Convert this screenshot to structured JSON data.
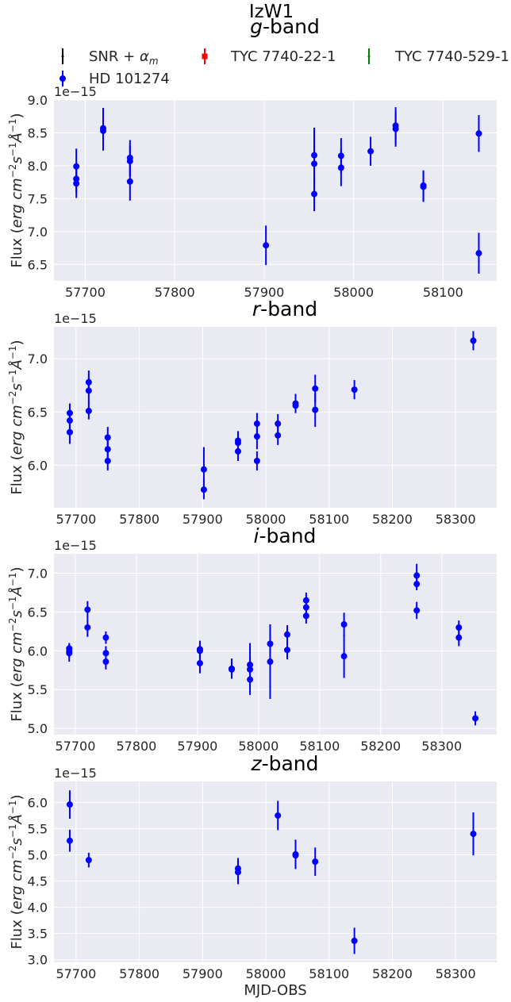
{
  "title": "IzW1",
  "colors": {
    "axes_bg": "#eaeaf2",
    "grid": "#ffffff",
    "series_main": "#0000ff",
    "series_red": "#ff0000",
    "series_green": "#008000",
    "series_black": "#000000"
  },
  "legend": {
    "items": [
      {
        "label": "SNR + ",
        "math": "α",
        "math_sub": "m",
        "color": "#000000",
        "marker": "errorbar"
      },
      {
        "label": "TYC 7740-22-1",
        "color": "#ff0000",
        "marker": "square"
      },
      {
        "label": "TYC 7740-529-1",
        "color": "#008000",
        "marker": "errorbar"
      },
      {
        "label": "HD 101274",
        "color": "#0000ff",
        "marker": "circle"
      }
    ]
  },
  "chart_data": [
    {
      "type": "scatter",
      "title_italic": "g",
      "title_rest": "-band",
      "exponent": "1e−15",
      "xlabel": "",
      "ylabel": {
        "prefix": "Flux (",
        "unit": "erg cm",
        "exp1": "−2",
        "mid": "s",
        "exp2": "−1",
        "ang": "Å",
        "exp3": "−1",
        "suffix": ")"
      },
      "xlim": [
        57665,
        58160
      ],
      "ylim": [
        6.25,
        9.0
      ],
      "xticks": [
        57700,
        57800,
        57900,
        58000,
        58100
      ],
      "xtick_labels": [
        "57700",
        "57800",
        "57900",
        "58000",
        "58100"
      ],
      "yticks": [
        6.5,
        7.0,
        7.5,
        8.0,
        8.5,
        9.0
      ],
      "ytick_labels": [
        "6.5",
        "7.0",
        "7.5",
        "8.0",
        "8.5",
        "9.0"
      ],
      "series": [
        {
          "name": "HD 101274",
          "points": [
            {
              "x": 57690,
              "y": 7.99,
              "err": 0.27
            },
            {
              "x": 57690,
              "y": 7.8,
              "err": 0.2
            },
            {
              "x": 57690,
              "y": 7.73,
              "err": 0.22
            },
            {
              "x": 57720,
              "y": 8.57,
              "err": 0.31
            },
            {
              "x": 57720,
              "y": 8.53,
              "err": 0.3
            },
            {
              "x": 57750,
              "y": 8.12,
              "err": 0.27
            },
            {
              "x": 57750,
              "y": 8.07,
              "err": 0.24
            },
            {
              "x": 57750,
              "y": 7.76,
              "err": 0.29
            },
            {
              "x": 57902,
              "y": 6.79,
              "err": 0.3
            },
            {
              "x": 57956,
              "y": 8.16,
              "err": 0.42
            },
            {
              "x": 57956,
              "y": 8.03,
              "err": 0.5
            },
            {
              "x": 57956,
              "y": 7.57,
              "err": 0.26
            },
            {
              "x": 57986,
              "y": 8.15,
              "err": 0.27
            },
            {
              "x": 57986,
              "y": 7.97,
              "err": 0.28
            },
            {
              "x": 58019,
              "y": 8.22,
              "err": 0.22
            },
            {
              "x": 58047,
              "y": 8.61,
              "err": 0.28
            },
            {
              "x": 58047,
              "y": 8.56,
              "err": 0.27
            },
            {
              "x": 58078,
              "y": 7.7,
              "err": 0.23
            },
            {
              "x": 58078,
              "y": 7.68,
              "err": 0.23
            },
            {
              "x": 58140,
              "y": 8.49,
              "err": 0.28
            },
            {
              "x": 58140,
              "y": 6.67,
              "err": 0.31
            }
          ]
        }
      ]
    },
    {
      "type": "scatter",
      "title_italic": "r",
      "title_rest": "-band",
      "exponent": "1e−15",
      "xlabel": "",
      "ylabel": {
        "prefix": "Flux (",
        "unit": "erg cm",
        "exp1": "−2",
        "mid": "s",
        "exp2": "−1",
        "ang": "Å",
        "exp3": "−1",
        "suffix": ")"
      },
      "xlim": [
        57665,
        58365
      ],
      "ylim": [
        5.6,
        7.3
      ],
      "xticks": [
        57700,
        57800,
        57900,
        58000,
        58100,
        58200,
        58300
      ],
      "xtick_labels": [
        "57700",
        "57800",
        "57900",
        "58000",
        "58100",
        "58200",
        "58300"
      ],
      "yticks": [
        6.0,
        6.5,
        7.0
      ],
      "ytick_labels": [
        "6.0",
        "6.5",
        "7.0"
      ],
      "series": [
        {
          "name": "HD 101274",
          "points": [
            {
              "x": 57690,
              "y": 6.49,
              "err": 0.09
            },
            {
              "x": 57690,
              "y": 6.42,
              "err": 0.1
            },
            {
              "x": 57690,
              "y": 6.31,
              "err": 0.11
            },
            {
              "x": 57720,
              "y": 6.78,
              "err": 0.11
            },
            {
              "x": 57720,
              "y": 6.7,
              "err": 0.12
            },
            {
              "x": 57720,
              "y": 6.51,
              "err": 0.08
            },
            {
              "x": 57750,
              "y": 6.26,
              "err": 0.1
            },
            {
              "x": 57750,
              "y": 6.15,
              "err": 0.09
            },
            {
              "x": 57750,
              "y": 6.04,
              "err": 0.09
            },
            {
              "x": 57902,
              "y": 5.96,
              "err": 0.21
            },
            {
              "x": 57902,
              "y": 5.77,
              "err": 0.09
            },
            {
              "x": 57956,
              "y": 6.23,
              "err": 0.09
            },
            {
              "x": 57956,
              "y": 6.21,
              "err": 0.1
            },
            {
              "x": 57956,
              "y": 6.13,
              "err": 0.09
            },
            {
              "x": 57986,
              "y": 6.39,
              "err": 0.1
            },
            {
              "x": 57986,
              "y": 6.27,
              "err": 0.12
            },
            {
              "x": 57986,
              "y": 6.04,
              "err": 0.09
            },
            {
              "x": 58019,
              "y": 6.39,
              "err": 0.09
            },
            {
              "x": 58019,
              "y": 6.28,
              "err": 0.09
            },
            {
              "x": 58047,
              "y": 6.58,
              "err": 0.09
            },
            {
              "x": 58047,
              "y": 6.56,
              "err": 0.07
            },
            {
              "x": 58078,
              "y": 6.72,
              "err": 0.13
            },
            {
              "x": 58078,
              "y": 6.52,
              "err": 0.16
            },
            {
              "x": 58140,
              "y": 6.71,
              "err": 0.09
            },
            {
              "x": 58328,
              "y": 7.17,
              "err": 0.09
            }
          ]
        }
      ]
    },
    {
      "type": "scatter",
      "title_italic": "i",
      "title_rest": "-band",
      "exponent": "1e−15",
      "xlabel": "",
      "ylabel": {
        "prefix": "Flux (",
        "unit": "erg cm",
        "exp1": "−2",
        "mid": "s",
        "exp2": "−1",
        "ang": "Å",
        "exp3": "−1",
        "suffix": ")"
      },
      "xlim": [
        57665,
        58390
      ],
      "ylim": [
        4.92,
        7.25
      ],
      "xticks": [
        57700,
        57800,
        57900,
        58000,
        58100,
        58200,
        58300
      ],
      "xtick_labels": [
        "57700",
        "57800",
        "57900",
        "58000",
        "58100",
        "58200",
        "58300"
      ],
      "yticks": [
        5.0,
        5.5,
        6.0,
        6.5,
        7.0
      ],
      "ytick_labels": [
        "5.0",
        "5.5",
        "6.0",
        "6.5",
        "7.0"
      ],
      "series": [
        {
          "name": "HD 101274",
          "points": [
            {
              "x": 57690,
              "y": 6.03,
              "err": 0.07
            },
            {
              "x": 57690,
              "y": 5.99,
              "err": 0.08
            },
            {
              "x": 57690,
              "y": 5.97,
              "err": 0.11
            },
            {
              "x": 57720,
              "y": 6.53,
              "err": 0.11
            },
            {
              "x": 57720,
              "y": 6.3,
              "err": 0.12
            },
            {
              "x": 57750,
              "y": 6.17,
              "err": 0.08
            },
            {
              "x": 57750,
              "y": 5.97,
              "err": 0.09
            },
            {
              "x": 57750,
              "y": 5.86,
              "err": 0.1
            },
            {
              "x": 57904,
              "y": 6.02,
              "err": 0.11
            },
            {
              "x": 57904,
              "y": 6.0,
              "err": 0.11
            },
            {
              "x": 57904,
              "y": 5.84,
              "err": 0.13
            },
            {
              "x": 57956,
              "y": 5.77,
              "err": 0.13
            },
            {
              "x": 57956,
              "y": 5.76,
              "err": 0.09
            },
            {
              "x": 57986,
              "y": 5.82,
              "err": 0.28
            },
            {
              "x": 57986,
              "y": 5.76,
              "err": 0.15
            },
            {
              "x": 57986,
              "y": 5.63,
              "err": 0.2
            },
            {
              "x": 58019,
              "y": 6.09,
              "err": 0.25
            },
            {
              "x": 58019,
              "y": 5.86,
              "err": 0.48
            },
            {
              "x": 58047,
              "y": 6.21,
              "err": 0.12
            },
            {
              "x": 58047,
              "y": 6.01,
              "err": 0.12
            },
            {
              "x": 58078,
              "y": 6.65,
              "err": 0.1
            },
            {
              "x": 58078,
              "y": 6.56,
              "err": 0.1
            },
            {
              "x": 58078,
              "y": 6.45,
              "err": 0.1
            },
            {
              "x": 58140,
              "y": 6.34,
              "err": 0.15
            },
            {
              "x": 58140,
              "y": 5.93,
              "err": 0.28
            },
            {
              "x": 58259,
              "y": 6.97,
              "err": 0.15
            },
            {
              "x": 58259,
              "y": 6.86,
              "err": 0.08
            },
            {
              "x": 58259,
              "y": 6.52,
              "err": 0.11
            },
            {
              "x": 58328,
              "y": 6.3,
              "err": 0.09
            },
            {
              "x": 58328,
              "y": 6.17,
              "err": 0.11
            },
            {
              "x": 58355,
              "y": 5.13,
              "err": 0.09
            }
          ]
        }
      ]
    },
    {
      "type": "scatter",
      "title_italic": "z",
      "title_rest": "-band",
      "exponent": "1e−15",
      "xlabel": "MJD-OBS",
      "ylabel": {
        "prefix": "Flux (",
        "unit": "erg cm",
        "exp1": "−2",
        "mid": "s",
        "exp2": "−1",
        "ang": "Å",
        "exp3": "−1",
        "suffix": ")"
      },
      "xlim": [
        57665,
        58365
      ],
      "ylim": [
        2.95,
        6.4
      ],
      "xticks": [
        57700,
        57800,
        57900,
        58000,
        58100,
        58200,
        58300
      ],
      "xtick_labels": [
        "57700",
        "57800",
        "57900",
        "58000",
        "58100",
        "58200",
        "58300"
      ],
      "yticks": [
        3.0,
        3.5,
        4.0,
        4.5,
        5.0,
        5.5,
        6.0
      ],
      "ytick_labels": [
        "3.0",
        "3.5",
        "4.0",
        "4.5",
        "5.0",
        "5.5",
        "6.0"
      ],
      "series": [
        {
          "name": "HD 101274",
          "points": [
            {
              "x": 57690,
              "y": 5.96,
              "err": 0.27
            },
            {
              "x": 57690,
              "y": 5.27,
              "err": 0.21
            },
            {
              "x": 57720,
              "y": 4.9,
              "err": 0.14
            },
            {
              "x": 57956,
              "y": 4.74,
              "err": 0.2
            },
            {
              "x": 57956,
              "y": 4.67,
              "err": 0.23
            },
            {
              "x": 58019,
              "y": 5.75,
              "err": 0.28
            },
            {
              "x": 58047,
              "y": 5.01,
              "err": 0.28
            },
            {
              "x": 58047,
              "y": 4.99,
              "err": 0.18
            },
            {
              "x": 58078,
              "y": 4.87,
              "err": 0.27
            },
            {
              "x": 58140,
              "y": 3.36,
              "err": 0.25
            },
            {
              "x": 58328,
              "y": 5.4,
              "err": 0.41
            }
          ]
        }
      ]
    }
  ]
}
